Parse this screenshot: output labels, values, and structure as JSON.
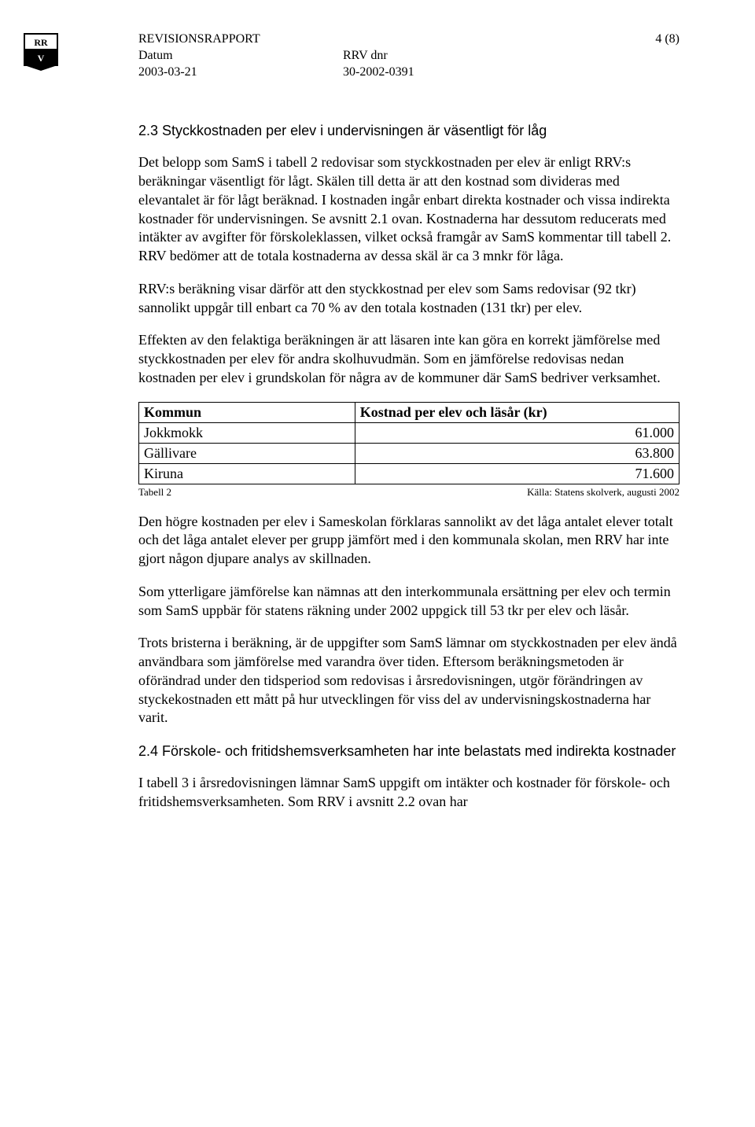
{
  "header": {
    "title": "REVISIONSRAPPORT",
    "page_label": "4 (8)",
    "row2_left_label": "Datum",
    "row2_right_label": "RRV dnr",
    "row3_left_value": "2003-03-21",
    "row3_right_value": "30-2002-0391"
  },
  "logo": {
    "stroke": "#000000",
    "fill_dark": "#000000",
    "fill_light": "#ffffff"
  },
  "section1": {
    "heading": "2.3 Styckkostnaden per elev i undervisningen är väsentligt för låg",
    "p1": "Det belopp som SamS i tabell 2 redovisar som styckkostnaden per elev är enligt RRV:s beräkningar väsentligt för lågt. Skälen till detta är att den kostnad som divideras med elevantalet är för lågt beräknad. I kostnaden ingår enbart direkta kostnader och vissa indirekta kostnader för undervisningen. Se avsnitt 2.1 ovan. Kostnaderna har dessutom reducerats med intäkter av avgifter för förskoleklassen, vilket också framgår av SamS kommentar till tabell 2. RRV bedömer att de totala kostnaderna av dessa skäl är ca 3 mnkr för låga.",
    "p2": "RRV:s beräkning visar därför att den styckkostnad per elev som Sams redovisar (92 tkr) sannolikt uppgår till enbart ca 70 % av den totala kostnaden (131 tkr) per elev.",
    "p3": "Effekten av den felaktiga beräkningen är att läsaren inte kan göra en korrekt jämförelse med styckkostnaden per elev för andra skolhuvudmän. Som en jämförelse redovisas nedan kostnaden per elev i grundskolan för några av de kommuner där SamS bedriver verksamhet."
  },
  "table": {
    "col1_header": "Kommun",
    "col2_header": "Kostnad per elev och läsår (kr)",
    "rows": [
      {
        "name": "Jokkmokk",
        "value": "61.000"
      },
      {
        "name": "Gällivare",
        "value": "63.800"
      },
      {
        "name": "Kiruna",
        "value": "71.600"
      }
    ],
    "caption_left": "Tabell 2",
    "caption_right": "Källa: Statens skolverk, augusti 2002",
    "col1_width_pct": 40,
    "col2_width_pct": 60,
    "border_color": "#000000",
    "font_size_pt": 13
  },
  "after_table": {
    "p4": "Den högre kostnaden per elev i Sameskolan förklaras sannolikt av det låga antalet elever totalt och det låga antalet elever per grupp jämfört med i den kommunala skolan, men RRV har inte gjort någon djupare analys av skillnaden.",
    "p5": "Som ytterligare jämförelse kan nämnas att den interkommunala ersättning per elev och termin som SamS uppbär för statens räkning under 2002 uppgick till 53 tkr per elev och läsår.",
    "p6": "Trots bristerna i beräkning, är de uppgifter som SamS lämnar om styckkostnaden per elev ändå användbara som jämförelse med varandra över tiden. Eftersom beräkningsmetoden är oförändrad under den tidsperiod som redovisas i årsredovisningen, utgör förändringen av styckekostnaden ett mått på hur utvecklingen för viss del av undervisningskostnaderna har varit."
  },
  "section2": {
    "heading": "2.4 Förskole- och fritidshemsverksamheten har inte belastats med indirekta kostnader",
    "p7": "I tabell 3 i årsredovisningen lämnar SamS uppgift om intäkter och kostnader för förskole- och fritidshemsverksamheten. Som RRV i avsnitt 2.2 ovan har"
  }
}
